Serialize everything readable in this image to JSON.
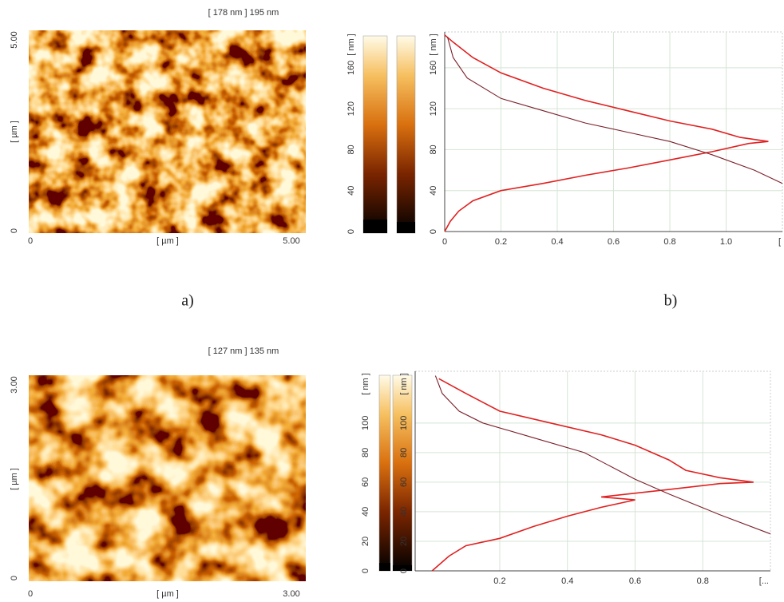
{
  "panels": [
    {
      "label": "a)",
      "image": {
        "title": "[ 178 nm ] 195 nm",
        "y_top": "5.00",
        "y_label": "[ µm ]",
        "y_bottom": "0",
        "x_left": "0",
        "x_label": "[ µm ]",
        "x_right": "5.00"
      },
      "colorbar": {
        "label": "[ nm ]",
        "ticks": [
          0,
          40,
          80,
          120,
          160
        ]
      }
    },
    {
      "image": {
        "title": "[ 127 nm ] 135 nm",
        "y_top": "3.00",
        "y_label": "[ µm ]",
        "y_bottom": "0",
        "x_left": "0",
        "x_label": "[ µm ]",
        "x_right": "3.00"
      },
      "colorbar": {
        "label": "[ nm ]",
        "ticks": [
          0,
          20,
          40,
          60,
          80,
          100
        ]
      }
    }
  ],
  "chart_data": [
    {
      "type": "line",
      "label": "b)",
      "y_label": "[ nm ]",
      "x_label": "[",
      "xlim": [
        0,
        1.2
      ],
      "ylim": [
        0,
        195
      ],
      "xticks": [
        0,
        0.2,
        0.4,
        0.6,
        0.8,
        {
          "value": 1,
          "label": "1.0"
        }
      ],
      "yticks": [
        0,
        40,
        80,
        120,
        160
      ],
      "grid": true,
      "series": [
        {
          "color": "#e02020",
          "x": [
            0,
            0.02,
            0.05,
            0.1,
            0.2,
            0.35,
            0.5,
            0.65,
            0.8,
            0.95,
            1.08,
            1.15,
            1.05,
            0.95,
            0.8,
            0.65,
            0.5,
            0.35,
            0.2,
            0.1,
            0.03,
            0
          ],
          "values": [
            0,
            10,
            20,
            30,
            40,
            47,
            55,
            62,
            70,
            78,
            86,
            88,
            92,
            100,
            108,
            118,
            128,
            140,
            155,
            170,
            185,
            192
          ]
        },
        {
          "color": "#7a1f2a",
          "x": [
            0.01,
            0.03,
            0.08,
            0.2,
            0.35,
            0.5,
            0.65,
            0.8,
            0.95,
            1.1,
            1.2
          ],
          "values": [
            190,
            170,
            150,
            130,
            118,
            106,
            97,
            88,
            75,
            60,
            47
          ]
        }
      ]
    },
    {
      "type": "line",
      "y_label": "[ nm ]",
      "x_label": "[...",
      "xlim": [
        -0.05,
        1.0
      ],
      "ylim": [
        0,
        135
      ],
      "xticks": [
        0.2,
        0.4,
        0.6,
        0.8
      ],
      "yticks": [
        0,
        20,
        40,
        60,
        80,
        100
      ],
      "grid": true,
      "series": [
        {
          "color": "#e02020",
          "x": [
            0,
            0.05,
            0.1,
            0.2,
            0.3,
            0.4,
            0.5,
            0.6,
            0.5,
            0.7,
            0.85,
            0.95,
            0.85,
            0.75,
            0.7,
            0.6,
            0.5,
            0.35,
            0.2,
            0.1,
            0.02
          ],
          "values": [
            0,
            10,
            17,
            22,
            30,
            37,
            43,
            48,
            50,
            55,
            59,
            60,
            63,
            68,
            75,
            85,
            92,
            100,
            108,
            120,
            130
          ]
        },
        {
          "color": "#7a1f2a",
          "x": [
            0.01,
            0.03,
            0.08,
            0.15,
            0.3,
            0.45,
            0.6,
            0.7,
            0.85,
            1.0
          ],
          "values": [
            132,
            120,
            108,
            100,
            90,
            80,
            62,
            52,
            38,
            25
          ]
        }
      ]
    }
  ]
}
